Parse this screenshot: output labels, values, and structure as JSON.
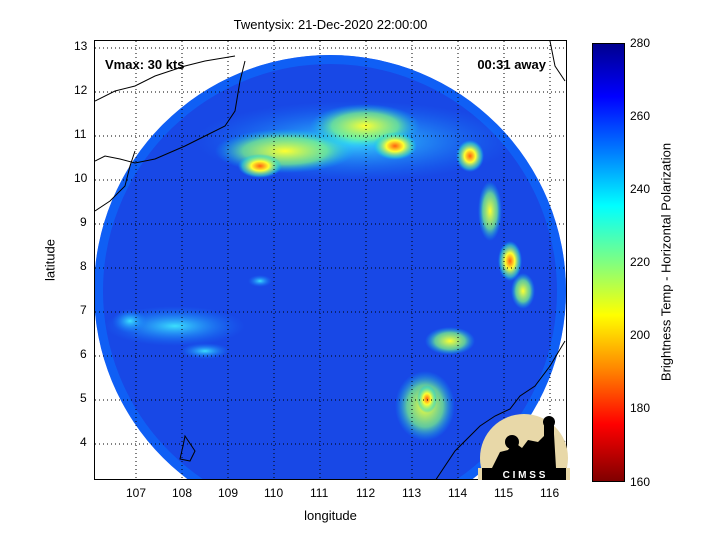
{
  "title": "Twentysix: 21-Dec-2020 22:00:00",
  "vmax_label": "Vmax: 30 kts",
  "time_label": "00:31 away",
  "x_axis": {
    "label": "longitude",
    "ticks": [
      "107",
      "108",
      "109",
      "110",
      "111",
      "112",
      "113",
      "114",
      "115",
      "116"
    ]
  },
  "y_axis": {
    "label": "latitude",
    "ticks": [
      "13",
      "12",
      "11",
      "10",
      "9",
      "8",
      "7",
      "6",
      "5",
      "4"
    ]
  },
  "colorbar": {
    "label": "Brightness Temp - Horizontal Polarization",
    "ticks": [
      "280",
      "260",
      "240",
      "220",
      "200",
      "180",
      "160"
    ],
    "range": [
      160,
      280
    ]
  },
  "logo_text": "C I M S S",
  "colors": {
    "background_cold": "#1a3fe0",
    "ring_edge": "#1060ff",
    "convective": "#ffff30",
    "intense": "#ff3010"
  }
}
